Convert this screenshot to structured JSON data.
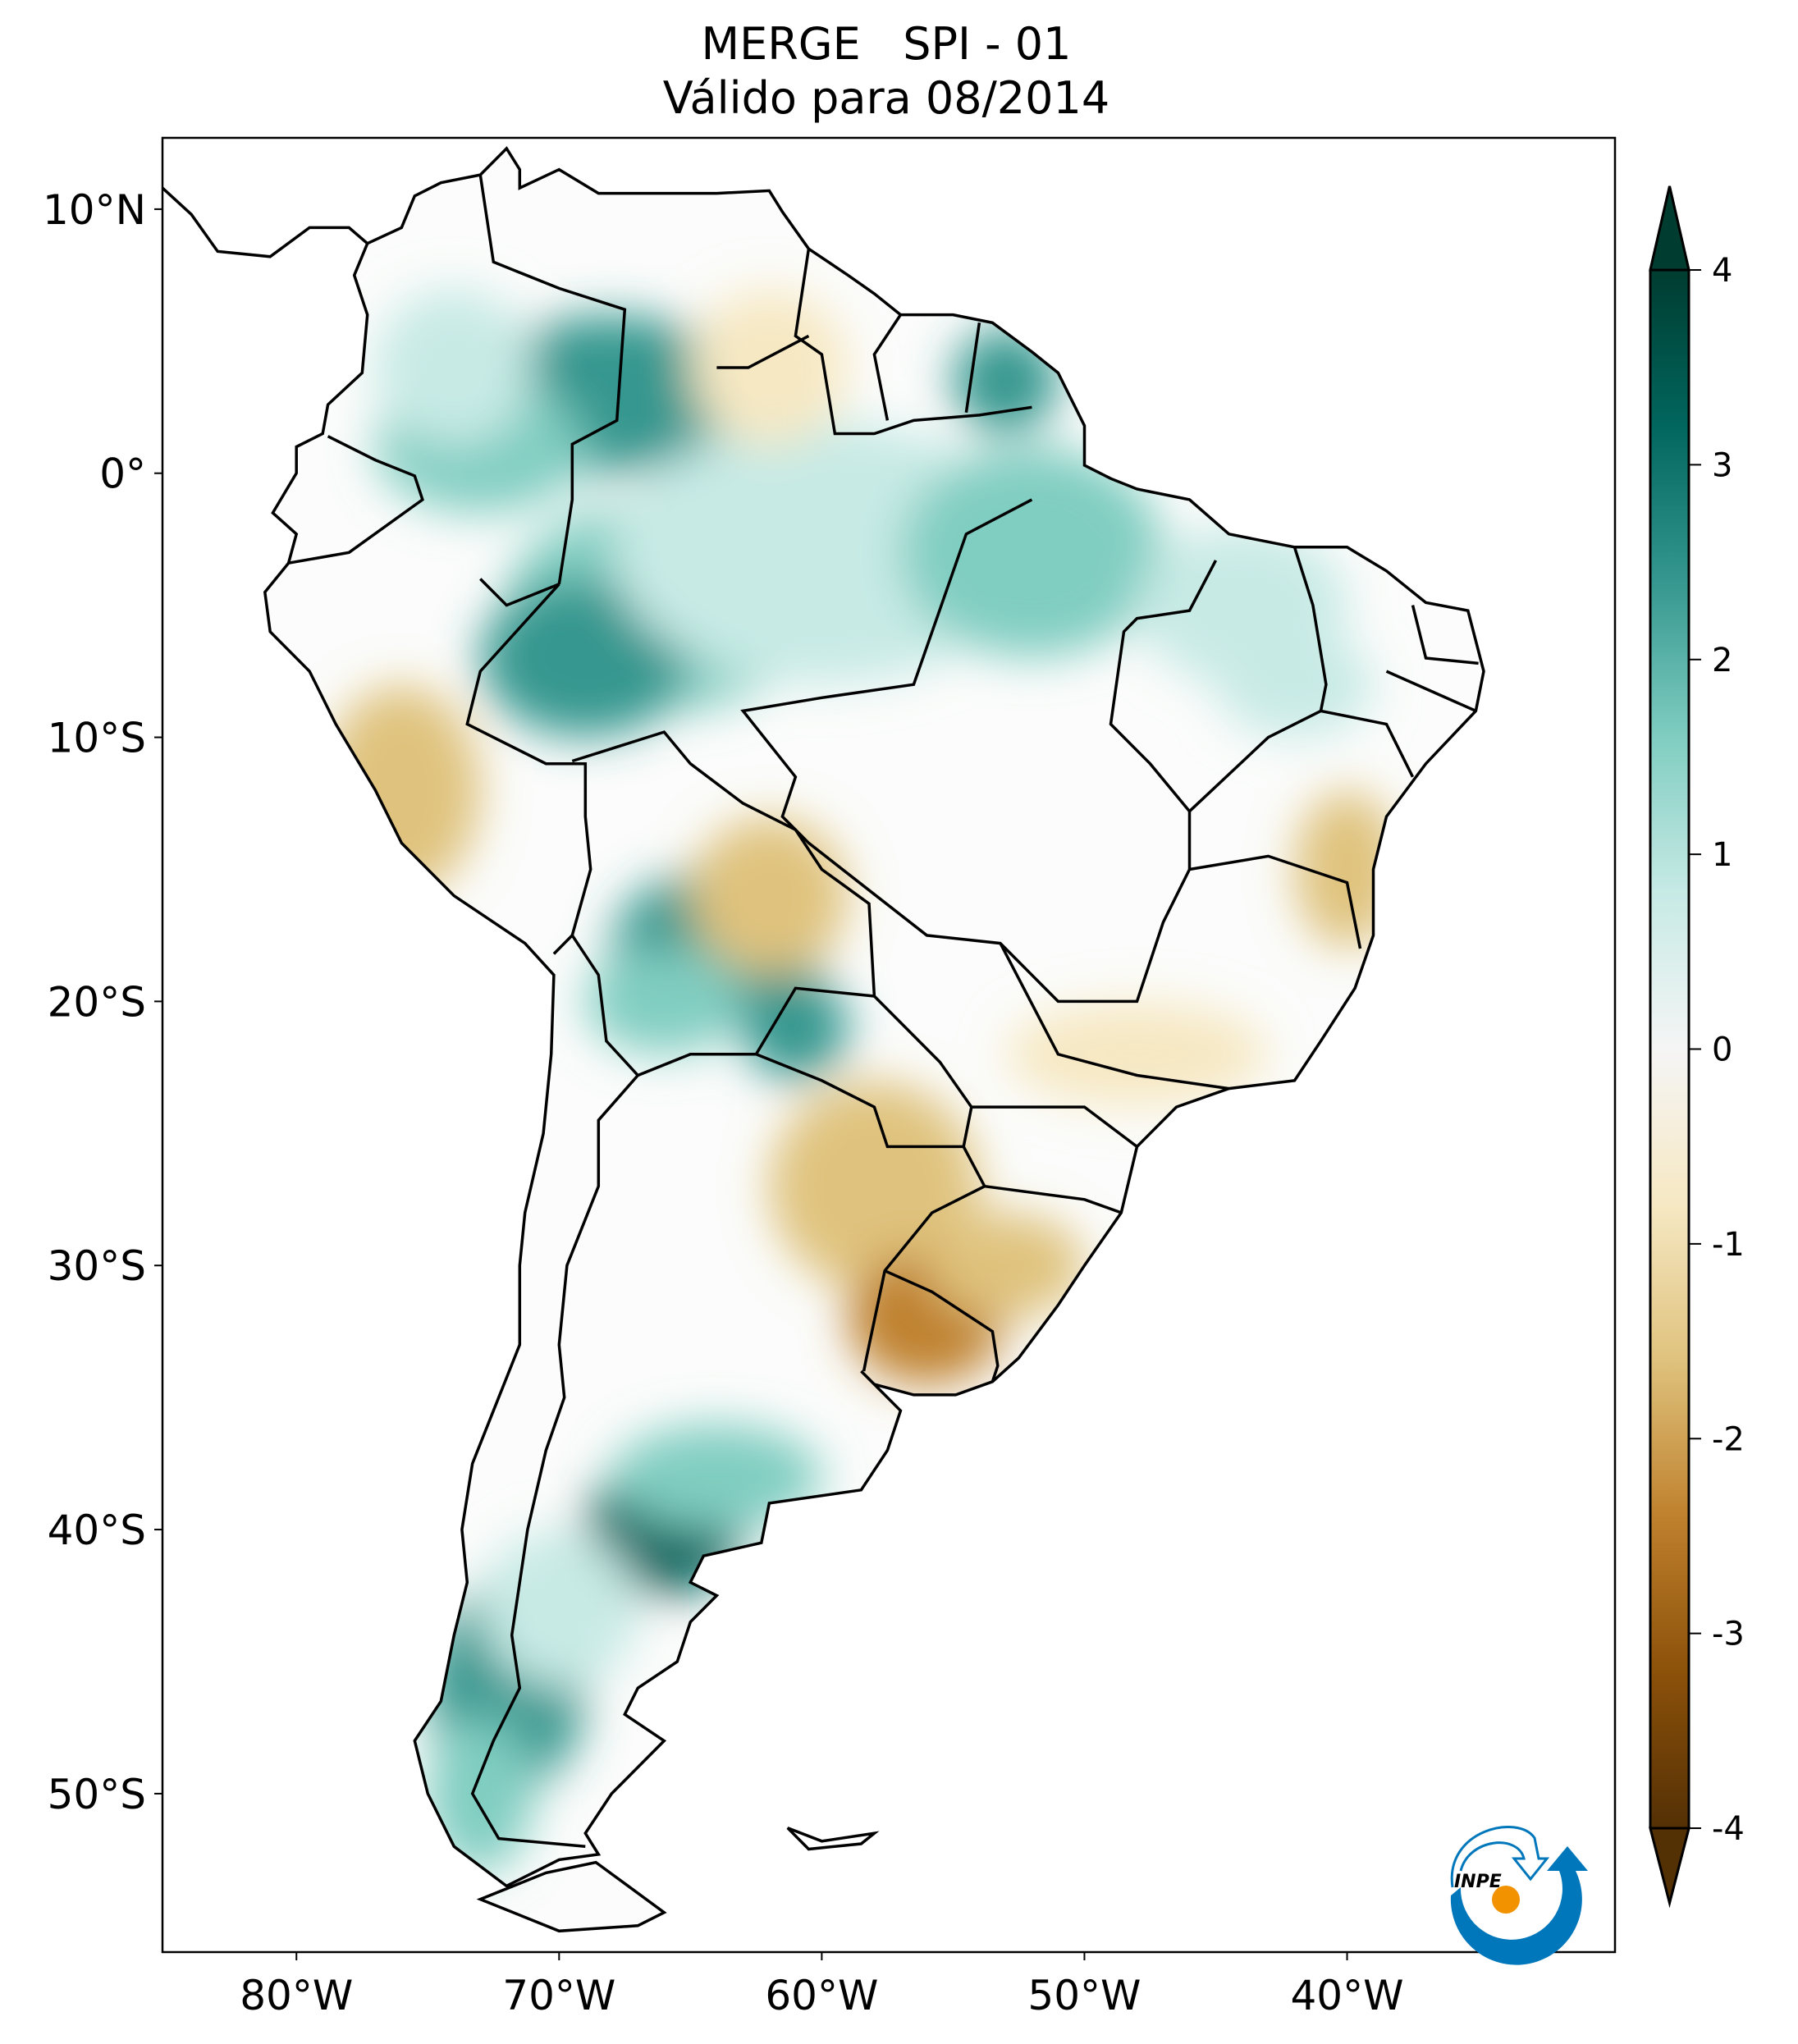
{
  "title": {
    "line1": "MERGE   SPI - 01",
    "line2": "Válido para 08/2014"
  },
  "map": {
    "projection": "PlateCarree",
    "extent_lon": [
      -85.1,
      -29.8
    ],
    "extent_lat": [
      -56.0,
      12.7
    ],
    "x_ticks": [
      {
        "value": -80,
        "label": "80°W"
      },
      {
        "value": -70,
        "label": "70°W"
      },
      {
        "value": -60,
        "label": "60°W"
      },
      {
        "value": -50,
        "label": "50°W"
      },
      {
        "value": -40,
        "label": "40°W"
      }
    ],
    "y_ticks": [
      {
        "value": 10,
        "label": "10°N"
      },
      {
        "value": 0,
        "label": "0°"
      },
      {
        "value": -10,
        "label": "10°S"
      },
      {
        "value": -20,
        "label": "20°S"
      },
      {
        "value": -30,
        "label": "30°S"
      },
      {
        "value": -40,
        "label": "40°S"
      },
      {
        "value": -50,
        "label": "50°S"
      }
    ]
  },
  "colorbar": {
    "range": [
      -4,
      4
    ],
    "extend": "both",
    "ticks": [
      {
        "value": 4,
        "label": "4"
      },
      {
        "value": 3,
        "label": "3"
      },
      {
        "value": 2,
        "label": "2"
      },
      {
        "value": 1,
        "label": "1"
      },
      {
        "value": 0,
        "label": "0"
      },
      {
        "value": -1,
        "label": "-1"
      },
      {
        "value": -2,
        "label": "-2"
      },
      {
        "value": -3,
        "label": "-3"
      },
      {
        "value": -4,
        "label": "-4"
      }
    ],
    "colormap": [
      "#543005",
      "#8c510a",
      "#bf812d",
      "#dfc27d",
      "#f6e8c3",
      "#f5f5f5",
      "#c7eae5",
      "#80cdc1",
      "#35978f",
      "#01665e",
      "#003c30"
    ]
  },
  "logo": {
    "text": "INPE",
    "colors": {
      "arrow": "#0077bb",
      "sun": "#f39200"
    }
  }
}
